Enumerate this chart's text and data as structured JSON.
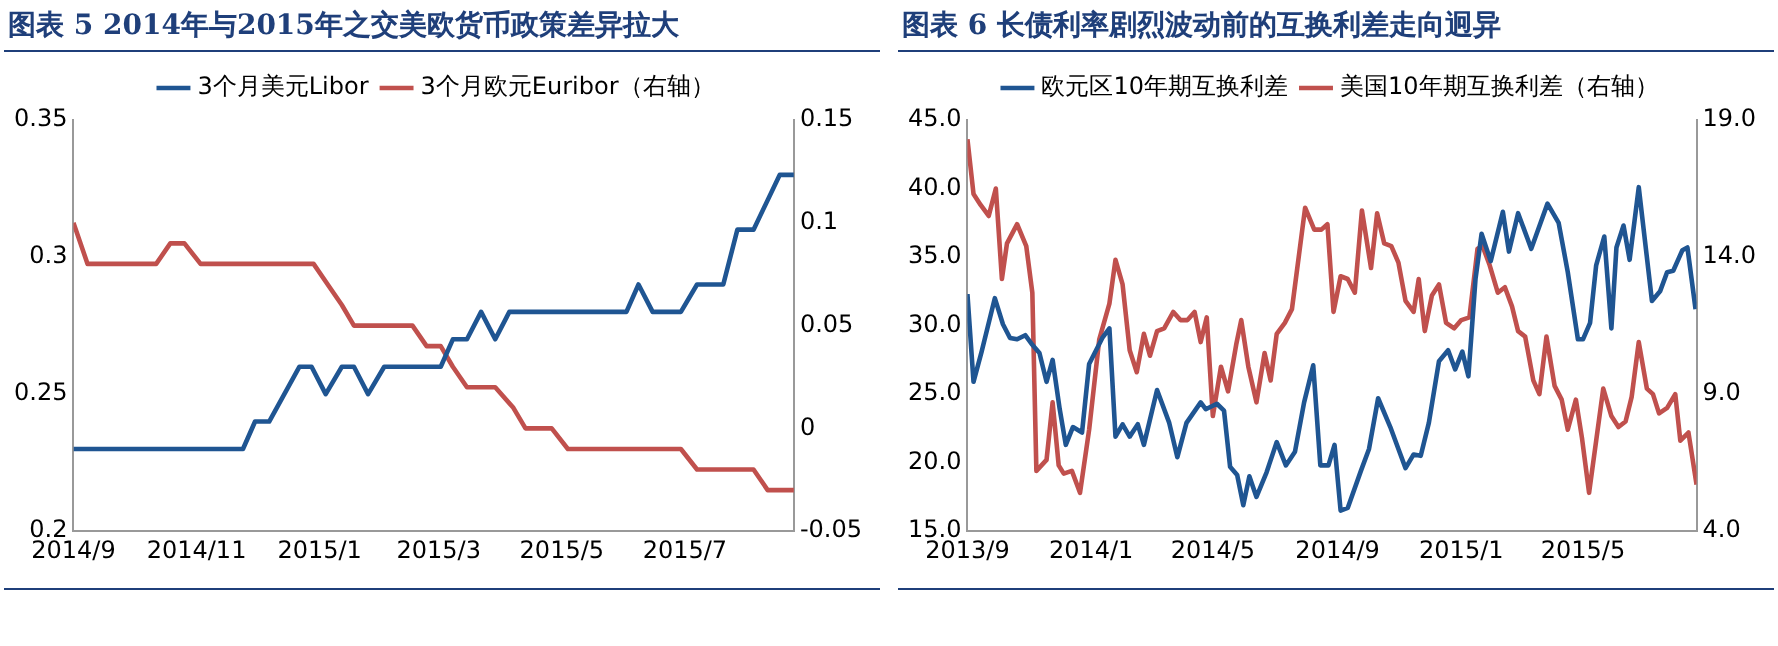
{
  "chart_data": [
    {
      "type": "line",
      "title": "图表 5 2014年与2015年之交美欧货币政策差异拉大",
      "legend": "top",
      "xlim": [
        "2014-09-01",
        "2015-08-24"
      ],
      "xticks": [
        {
          "value": "2014-09-01",
          "label": "2014/9"
        },
        {
          "value": "2014-11-01",
          "label": "2014/11"
        },
        {
          "value": "2015-01-01",
          "label": "2015/1"
        },
        {
          "value": "2015-03-01",
          "label": "2015/3"
        },
        {
          "value": "2015-05-01",
          "label": "2015/5"
        },
        {
          "value": "2015-07-01",
          "label": "2015/7"
        }
      ],
      "ylim": [
        0.2,
        0.35
      ],
      "yticks": [
        0.2,
        0.25,
        0.3,
        0.35
      ],
      "y2lim": [
        -0.05,
        0.15
      ],
      "y2ticks": [
        -0.05,
        0,
        0.05,
        0.1,
        0.15
      ],
      "series": [
        {
          "name": "3个月美元Libor",
          "color": "#1f5592",
          "x": [
            "2014-09-01",
            "2014-11-24",
            "2014-11-30",
            "2014-12-07",
            "2014-12-22",
            "2014-12-28",
            "2015-01-04",
            "2015-01-12",
            "2015-01-18",
            "2015-01-25",
            "2015-02-02",
            "2015-03-02",
            "2015-03-08",
            "2015-03-15",
            "2015-03-22",
            "2015-03-29",
            "2015-04-05",
            "2015-06-02",
            "2015-06-08",
            "2015-06-15",
            "2015-06-29",
            "2015-07-07",
            "2015-07-20",
            "2015-07-27",
            "2015-08-04",
            "2015-08-17",
            "2015-08-24"
          ],
          "values": [
            0.23,
            0.23,
            0.24,
            0.24,
            0.26,
            0.26,
            0.25,
            0.26,
            0.26,
            0.25,
            0.26,
            0.26,
            0.27,
            0.27,
            0.28,
            0.27,
            0.28,
            0.28,
            0.29,
            0.28,
            0.28,
            0.29,
            0.29,
            0.31,
            0.31,
            0.33,
            0.33
          ]
        },
        {
          "name": "3个月欧元Euribor（右轴）",
          "color": "#c0504d",
          "axis": "y2",
          "x": [
            "2014-09-01",
            "2014-09-08",
            "2014-10-12",
            "2014-10-19",
            "2014-10-26",
            "2014-11-03",
            "2014-12-29",
            "2015-01-05",
            "2015-01-12",
            "2015-01-18",
            "2015-02-16",
            "2015-02-23",
            "2015-03-02",
            "2015-03-08",
            "2015-03-15",
            "2015-03-29",
            "2015-04-07",
            "2015-04-13",
            "2015-04-26",
            "2015-05-04",
            "2015-06-29",
            "2015-07-07",
            "2015-08-04",
            "2015-08-11",
            "2015-08-24"
          ],
          "values": [
            0.1,
            0.08,
            0.08,
            0.09,
            0.09,
            0.08,
            0.08,
            0.07,
            0.06,
            0.05,
            0.05,
            0.04,
            0.04,
            0.03,
            0.02,
            0.02,
            0.01,
            0,
            0,
            -0.01,
            -0.01,
            -0.02,
            -0.02,
            -0.03,
            -0.03
          ]
        }
      ]
    },
    {
      "type": "line",
      "title": "图表 6 长债利率剧烈波动前的互换利差走向迥异",
      "legend": "top",
      "xlim": [
        "2013-09-01",
        "2015-08-21"
      ],
      "xticks": [
        {
          "value": "2013-09-01",
          "label": "2013/9"
        },
        {
          "value": "2014-01-01",
          "label": "2014/1"
        },
        {
          "value": "2014-05-01",
          "label": "2014/5"
        },
        {
          "value": "2014-09-01",
          "label": "2014/9"
        },
        {
          "value": "2015-01-01",
          "label": "2015/1"
        },
        {
          "value": "2015-05-01",
          "label": "2015/5"
        }
      ],
      "ylim": [
        15,
        45
      ],
      "yticks": [
        {
          "value": 15,
          "label": "15.0"
        },
        {
          "value": 20,
          "label": "20.0"
        },
        {
          "value": 25,
          "label": "25.0"
        },
        {
          "value": 30,
          "label": "30.0"
        },
        {
          "value": 35,
          "label": "35.0"
        },
        {
          "value": 40,
          "label": "40.0"
        },
        {
          "value": 45,
          "label": "45.0"
        }
      ],
      "y2lim": [
        4,
        19
      ],
      "y2ticks": [
        {
          "value": 4,
          "label": "4.0"
        },
        {
          "value": 9,
          "label": "9.0"
        },
        {
          "value": 14,
          "label": "14.0"
        },
        {
          "value": 19,
          "label": "19.0"
        }
      ],
      "series": [
        {
          "name": "欧元区10年期互换利差",
          "color": "#1f5592",
          "x": [
            "2013-09-01",
            "2013-09-07",
            "2013-09-15",
            "2013-09-28",
            "2013-10-06",
            "2013-10-13",
            "2013-10-20",
            "2013-10-28",
            "2013-11-04",
            "2013-11-11",
            "2013-11-18",
            "2013-11-24",
            "2013-12-01",
            "2013-12-07",
            "2013-12-14",
            "2013-12-23",
            "2013-12-30",
            "2014-01-12",
            "2014-01-19",
            "2014-01-25",
            "2014-02-01",
            "2014-02-08",
            "2014-02-16",
            "2014-02-22",
            "2014-03-07",
            "2014-03-19",
            "2014-03-27",
            "2014-04-05",
            "2014-04-19",
            "2014-04-24",
            "2014-05-05",
            "2014-05-12",
            "2014-05-18",
            "2014-05-25",
            "2014-05-31",
            "2014-06-06",
            "2014-06-13",
            "2014-06-23",
            "2014-07-03",
            "2014-07-12",
            "2014-07-21",
            "2014-07-30",
            "2014-08-08",
            "2014-08-15",
            "2014-08-23",
            "2014-08-29",
            "2014-09-04",
            "2014-09-11",
            "2014-09-24",
            "2014-10-02",
            "2014-10-11",
            "2014-10-23",
            "2014-10-31",
            "2014-11-07",
            "2014-11-15",
            "2014-11-22",
            "2014-11-30",
            "2014-12-10",
            "2014-12-19",
            "2014-12-26",
            "2015-01-02",
            "2015-01-08",
            "2015-01-15",
            "2015-01-21",
            "2015-01-30",
            "2015-02-11",
            "2015-02-17",
            "2015-02-26",
            "2015-03-11",
            "2015-03-27",
            "2015-04-07",
            "2015-04-16",
            "2015-04-26",
            "2015-05-01",
            "2015-05-08",
            "2015-05-14",
            "2015-05-22",
            "2015-05-29",
            "2015-06-03",
            "2015-06-10",
            "2015-06-16",
            "2015-06-25",
            "2015-07-08",
            "2015-07-16",
            "2015-07-23",
            "2015-07-29",
            "2015-08-07",
            "2015-08-12",
            "2015-08-20"
          ],
          "values": [
            32.3,
            25.9,
            28.1,
            32.0,
            30.1,
            29.1,
            29.0,
            29.3,
            28.6,
            28.0,
            25.9,
            27.5,
            23.9,
            21.3,
            22.6,
            22.2,
            27.2,
            29.1,
            29.8,
            21.9,
            22.8,
            21.9,
            22.8,
            21.3,
            25.3,
            22.9,
            20.4,
            22.9,
            24.4,
            23.9,
            24.3,
            23.8,
            19.7,
            19.1,
            16.9,
            19.0,
            17.5,
            19.3,
            21.5,
            19.8,
            20.8,
            24.4,
            27.1,
            19.8,
            19.8,
            21.3,
            16.5,
            16.7,
            19.4,
            21.0,
            24.7,
            22.6,
            21.0,
            19.6,
            20.6,
            20.5,
            22.9,
            27.4,
            28.2,
            26.8,
            28.1,
            26.3,
            33.4,
            36.7,
            34.7,
            38.3,
            35.4,
            38.2,
            35.6,
            38.9,
            37.5,
            33.9,
            29.0,
            29.0,
            30.2,
            34.4,
            36.5,
            29.8,
            35.7,
            37.3,
            34.8,
            40.1,
            31.8,
            32.5,
            33.9,
            34.0,
            35.5,
            35.7,
            31.2
          ]
        },
        {
          "name": "美国10年期互换利差（右轴）",
          "color": "#c0504d",
          "axis": "y2",
          "x": [
            "2013-09-01",
            "2013-09-07",
            "2013-09-14",
            "2013-09-22",
            "2013-09-29",
            "2013-10-05",
            "2013-10-10",
            "2013-10-20",
            "2013-10-29",
            "2013-11-04",
            "2013-11-08",
            "2013-11-18",
            "2013-11-24",
            "2013-11-30",
            "2013-12-05",
            "2013-12-13",
            "2013-12-21",
            "2013-12-30",
            "2014-01-09",
            "2014-01-19",
            "2014-01-25",
            "2014-02-01",
            "2014-02-08",
            "2014-02-15",
            "2014-02-22",
            "2014-02-28",
            "2014-03-07",
            "2014-03-14",
            "2014-03-23",
            "2014-03-30",
            "2014-04-06",
            "2014-04-13",
            "2014-04-19",
            "2014-04-25",
            "2014-05-01",
            "2014-05-09",
            "2014-05-16",
            "2014-05-24",
            "2014-05-29",
            "2014-06-05",
            "2014-06-13",
            "2014-06-21",
            "2014-06-27",
            "2014-07-03",
            "2014-07-11",
            "2014-07-18",
            "2014-07-31",
            "2014-08-09",
            "2014-08-16",
            "2014-08-22",
            "2014-08-28",
            "2014-09-04",
            "2014-09-11",
            "2014-09-18",
            "2014-09-25",
            "2014-10-04",
            "2014-10-10",
            "2014-10-17",
            "2014-10-24",
            "2014-10-31",
            "2014-11-07",
            "2014-11-15",
            "2014-11-20",
            "2014-11-26",
            "2014-12-03",
            "2014-12-10",
            "2014-12-17",
            "2014-12-25",
            "2015-01-01",
            "2015-01-09",
            "2015-01-17",
            "2015-01-22",
            "2015-01-29",
            "2015-02-06",
            "2015-02-13",
            "2015-02-20",
            "2015-02-26",
            "2015-03-05",
            "2015-03-13",
            "2015-03-19",
            "2015-03-26",
            "2015-04-03",
            "2015-04-10",
            "2015-04-16",
            "2015-04-24",
            "2015-04-30",
            "2015-05-07",
            "2015-05-14",
            "2015-05-21",
            "2015-05-29",
            "2015-06-05",
            "2015-06-12",
            "2015-06-18",
            "2015-06-25",
            "2015-07-03",
            "2015-07-09",
            "2015-07-15",
            "2015-07-23",
            "2015-07-31",
            "2015-08-05",
            "2015-08-13",
            "2015-08-21"
          ],
          "values": [
            18.3,
            16.3,
            15.9,
            15.5,
            16.5,
            13.2,
            14.5,
            15.2,
            14.4,
            12.7,
            6.2,
            6.6,
            8.7,
            6.4,
            6.1,
            6.2,
            5.4,
            7.7,
            11.0,
            12.3,
            13.9,
            13.0,
            10.6,
            9.8,
            11.2,
            10.4,
            11.3,
            11.4,
            12.0,
            11.7,
            11.7,
            12.0,
            10.9,
            11.8,
            8.2,
            10.0,
            9.1,
            10.8,
            11.7,
            10.0,
            8.7,
            10.5,
            9.5,
            11.2,
            11.6,
            12.1,
            15.8,
            15.0,
            15.0,
            15.2,
            12.0,
            13.3,
            13.2,
            12.7,
            15.7,
            13.6,
            15.6,
            14.5,
            14.4,
            13.8,
            12.4,
            12.0,
            13.2,
            11.3,
            12.6,
            13.0,
            11.6,
            11.4,
            11.7,
            11.8,
            14.3,
            14.4,
            13.7,
            12.7,
            12.9,
            12.2,
            11.3,
            11.1,
            9.5,
            9.0,
            11.1,
            9.3,
            8.8,
            7.7,
            8.8,
            7.4,
            5.4,
            7.3,
            9.2,
            8.2,
            7.8,
            8.0,
            8.9,
            10.9,
            9.2,
            9.0,
            8.3,
            8.5,
            9.0,
            7.3,
            7.6,
            5.7
          ]
        }
      ]
    }
  ]
}
